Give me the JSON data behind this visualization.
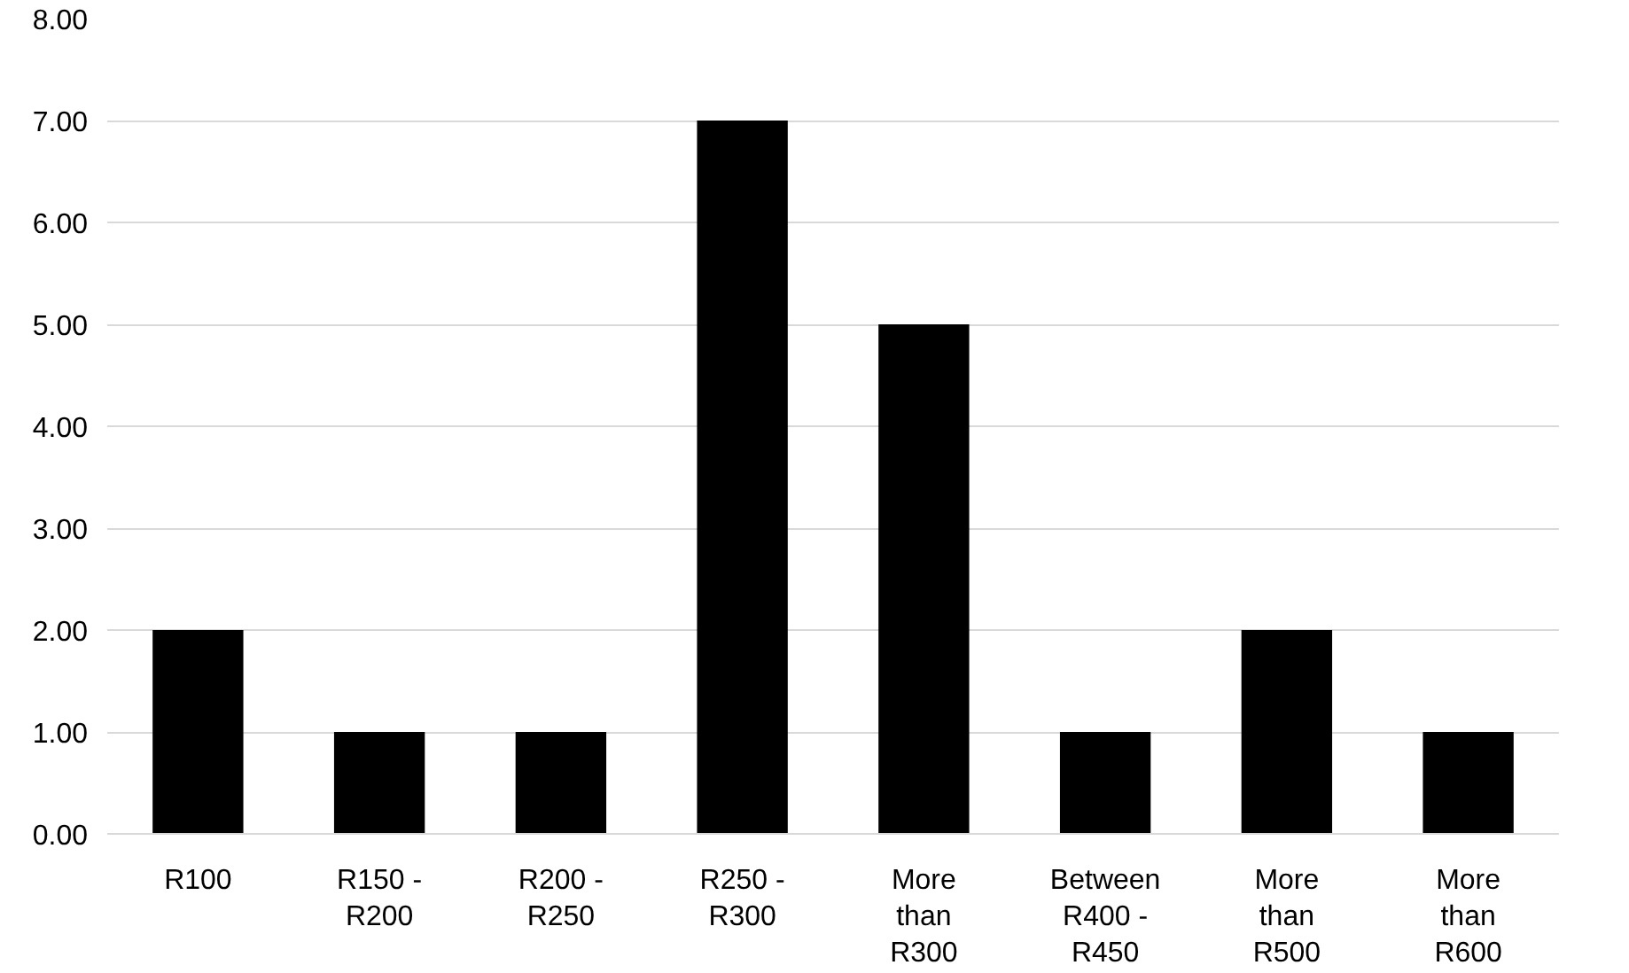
{
  "chart_data": {
    "type": "bar",
    "categories": [
      "R100",
      "R150 - R200",
      "R200 - R250",
      "R250 - R300",
      "More than R300",
      "Between R400 - R450",
      "More than R500",
      "More than R600"
    ],
    "values": [
      2,
      1,
      1,
      7,
      5,
      1,
      2,
      1
    ],
    "color": "#000000",
    "ylim": [
      0,
      8
    ],
    "yticks": [
      {
        "value": 0,
        "label": "0.00"
      },
      {
        "value": 1,
        "label": "1.00"
      },
      {
        "value": 2,
        "label": "2.00"
      },
      {
        "value": 3,
        "label": "3.00"
      },
      {
        "value": 4,
        "label": "4.00"
      },
      {
        "value": 5,
        "label": "5.00"
      },
      {
        "value": 6,
        "label": "6.00"
      },
      {
        "value": 7,
        "label": "7.00"
      },
      {
        "value": 8,
        "label": "8.00"
      }
    ],
    "grid": "y"
  }
}
